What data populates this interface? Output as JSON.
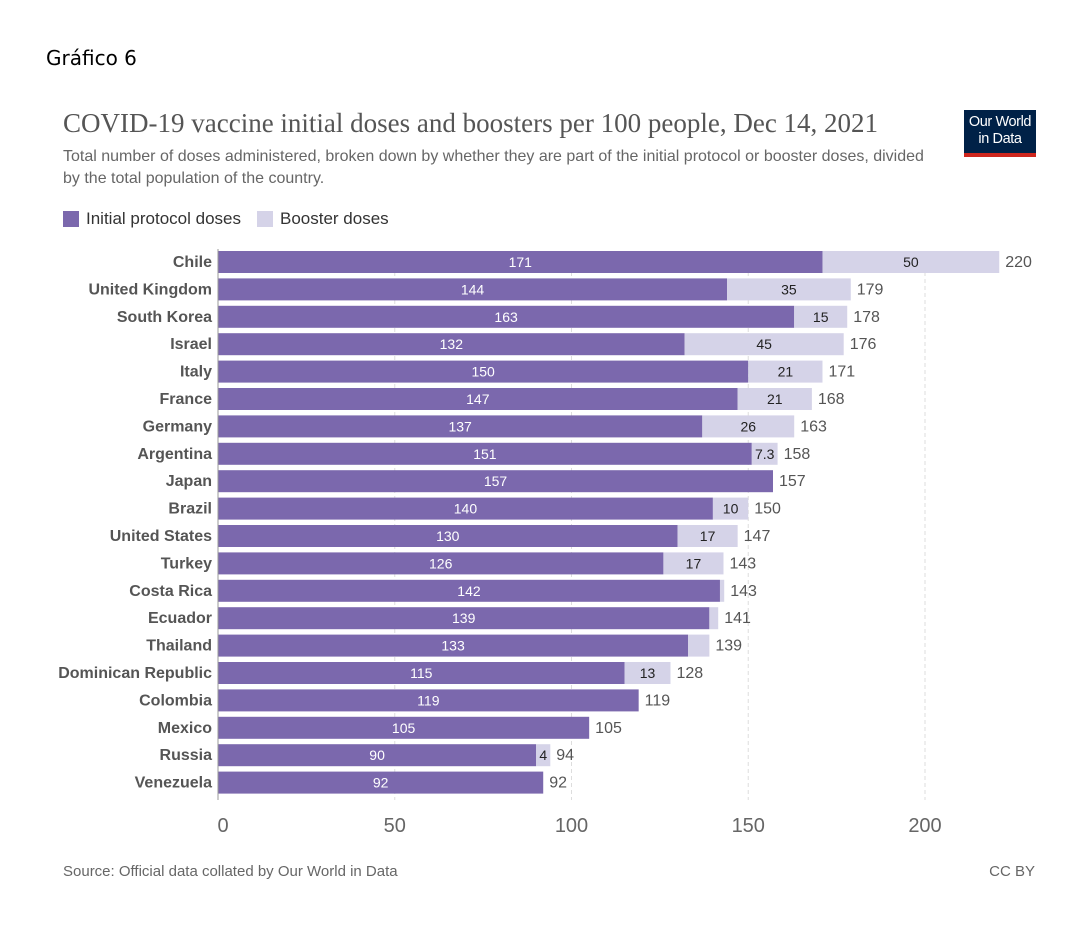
{
  "heading": "Gráfico 6",
  "logo": {
    "line1": "Our World",
    "line2": "in Data"
  },
  "footer": {
    "source": "Source: Official data collated by Our World in Data",
    "license": "CC BY"
  },
  "chart_data": {
    "type": "bar",
    "orientation": "horizontal",
    "stacked": true,
    "title": "COVID-19 vaccine initial doses and boosters per 100 people, Dec 14, 2021",
    "subtitle": "Total number of doses administered, broken down by whether they are part of the initial protocol or booster doses, divided by the total population of the country.",
    "legend_position": "top-left",
    "xlim": [
      0,
      225
    ],
    "x_ticks": [
      0,
      50,
      100,
      150,
      200
    ],
    "grid": "vertical dashed",
    "categories": [
      "Chile",
      "United Kingdom",
      "South Korea",
      "Israel",
      "Italy",
      "France",
      "Germany",
      "Argentina",
      "Japan",
      "Brazil",
      "United States",
      "Turkey",
      "Costa Rica",
      "Ecuador",
      "Thailand",
      "Dominican Republic",
      "Colombia",
      "Mexico",
      "Russia",
      "Venezuela"
    ],
    "series": [
      {
        "name": "Initial protocol doses",
        "color": "#7b68ad",
        "values": [
          171,
          144,
          163,
          132,
          150,
          147,
          137,
          151,
          157,
          140,
          130,
          126,
          142,
          139,
          133,
          115,
          119,
          105,
          90,
          92
        ]
      },
      {
        "name": "Booster doses",
        "color": "#d5d3e8",
        "values": [
          50,
          35,
          15,
          45,
          21,
          21,
          26,
          7.3,
          null,
          10,
          17,
          17,
          1.2,
          2.5,
          6,
          13,
          null,
          null,
          4,
          null
        ]
      }
    ],
    "booster_labels": [
      "50",
      "35",
      "15",
      "45",
      "21",
      "21",
      "26",
      "7.3",
      "",
      "10",
      "17",
      "17",
      "",
      "",
      "",
      "13",
      "",
      "",
      "4",
      ""
    ],
    "totals": [
      220,
      179,
      178,
      176,
      171,
      168,
      163,
      158,
      157,
      150,
      147,
      143,
      143,
      141,
      139,
      128,
      119,
      105,
      94,
      92
    ]
  }
}
